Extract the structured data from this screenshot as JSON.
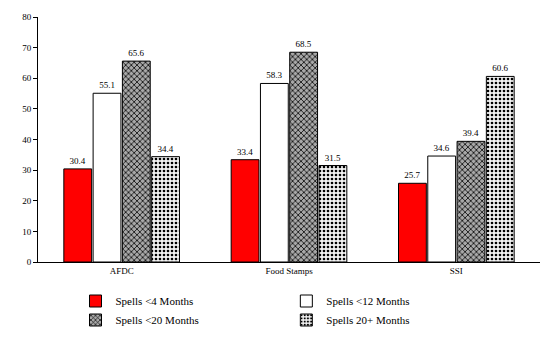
{
  "chart_data": {
    "type": "bar",
    "categories": [
      "AFDC",
      "Food Stamps",
      "SSI"
    ],
    "series": [
      {
        "name": "Spells <4 Months",
        "color": "#ff0000",
        "values": [
          30.4,
          33.4,
          25.7
        ]
      },
      {
        "name": "Spells <12 Months",
        "color": "#ffffff",
        "values": [
          55.1,
          58.3,
          34.6
        ]
      },
      {
        "name": "Spells <20 Months",
        "color": "#a8a8a8",
        "marker": "crosshatch",
        "values": [
          65.6,
          68.5,
          39.4
        ]
      },
      {
        "name": "Spells 20+ Months",
        "color": "#f2f2f2",
        "marker": "dots",
        "values": [
          34.4,
          31.5,
          60.6
        ]
      }
    ],
    "ylim": [
      0,
      80
    ],
    "yticks": [
      0,
      10,
      20,
      30,
      40,
      50,
      60,
      70,
      80
    ],
    "grid": false,
    "legend": "bottom",
    "data_labels": true
  }
}
